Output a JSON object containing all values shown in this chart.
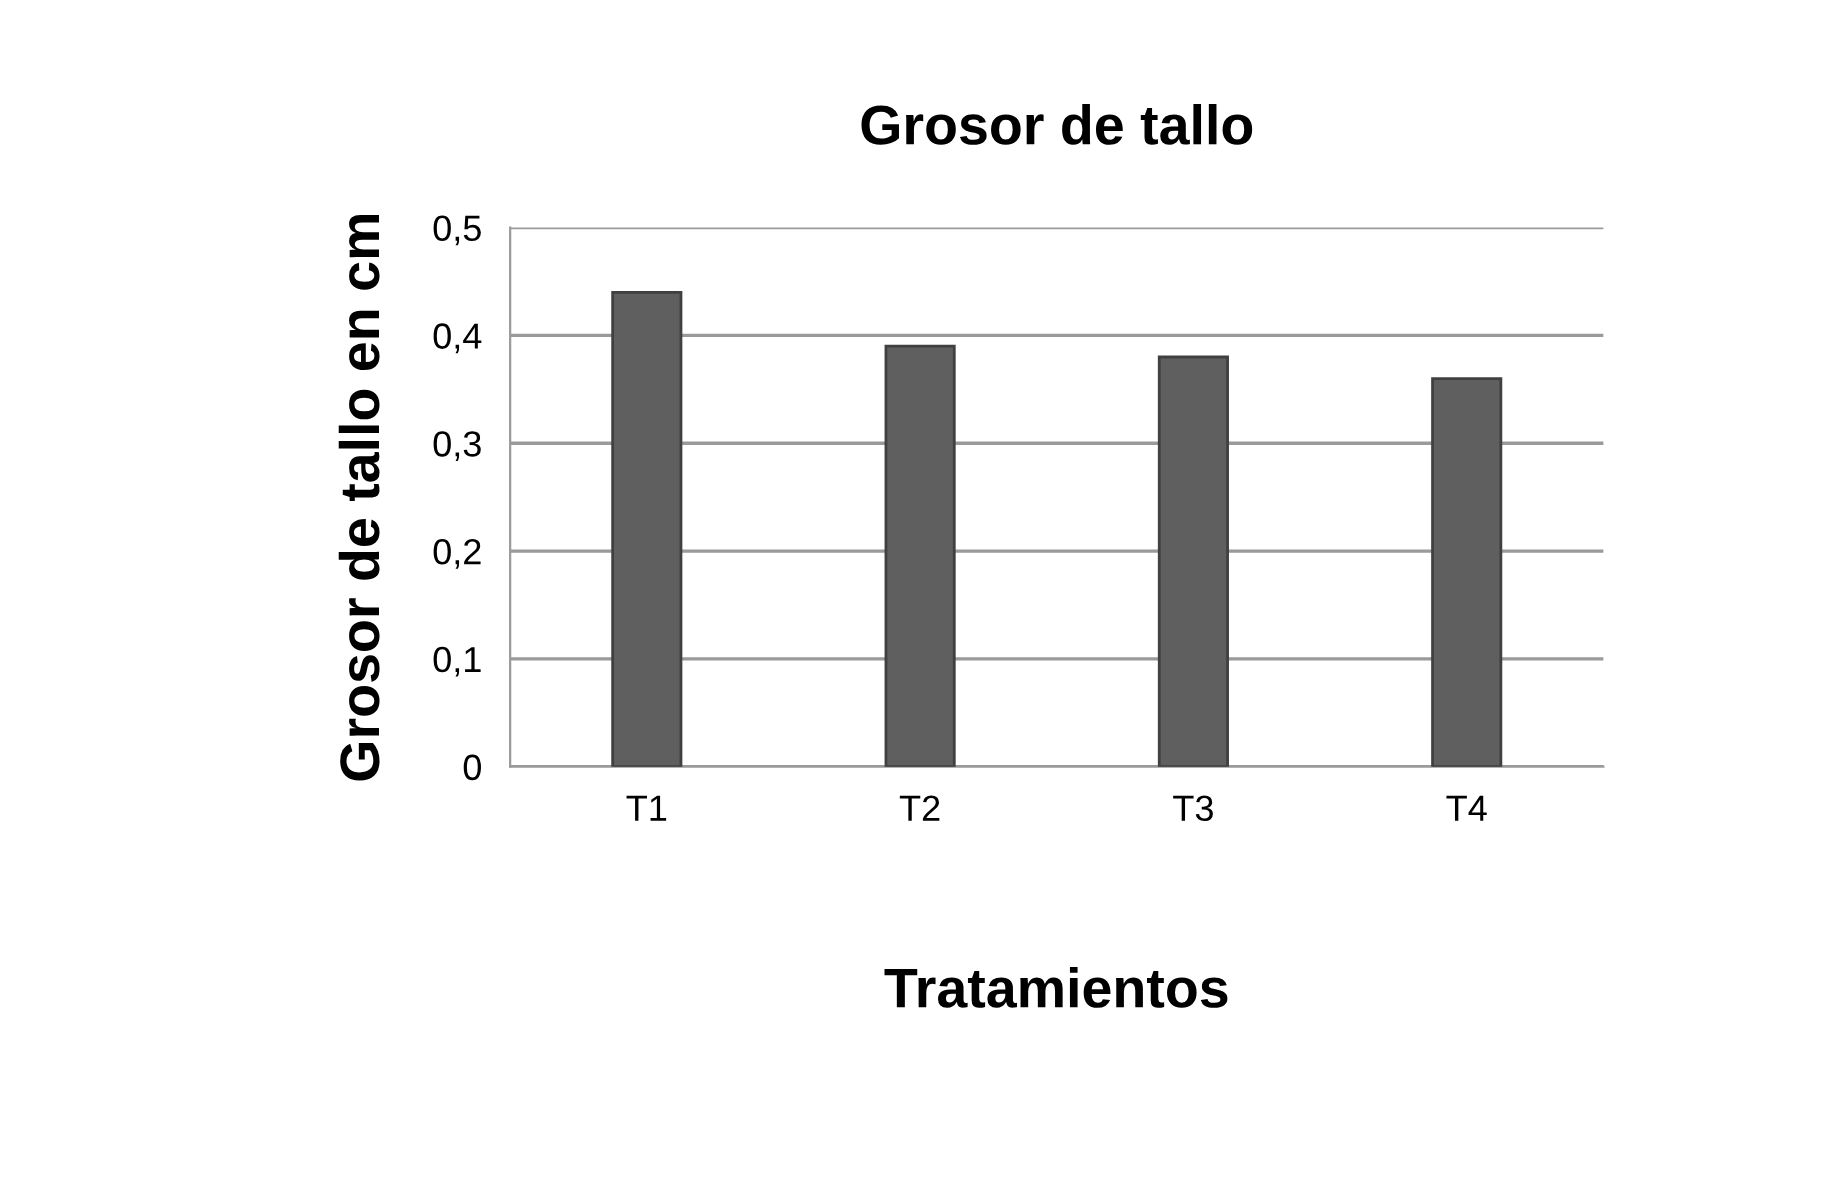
{
  "chart_data": {
    "type": "bar",
    "title": "Grosor de tallo",
    "xlabel": "Tratamientos",
    "ylabel": "Grosor de tallo en cm",
    "categories": [
      "T1",
      "T2",
      "T3",
      "T4"
    ],
    "values": [
      0.44,
      0.39,
      0.38,
      0.36
    ],
    "color": "#5f5f5f",
    "ylim": [
      0,
      0.5
    ],
    "yticks": [
      {
        "value": 0,
        "label": "0"
      },
      {
        "value": 0.1,
        "label": "0,1"
      },
      {
        "value": 0.2,
        "label": "0,2"
      },
      {
        "value": 0.3,
        "label": "0,3"
      },
      {
        "value": 0.4,
        "label": "0,4"
      },
      {
        "value": 0.5,
        "label": "0,5"
      }
    ],
    "grid": "y",
    "legend": false
  }
}
